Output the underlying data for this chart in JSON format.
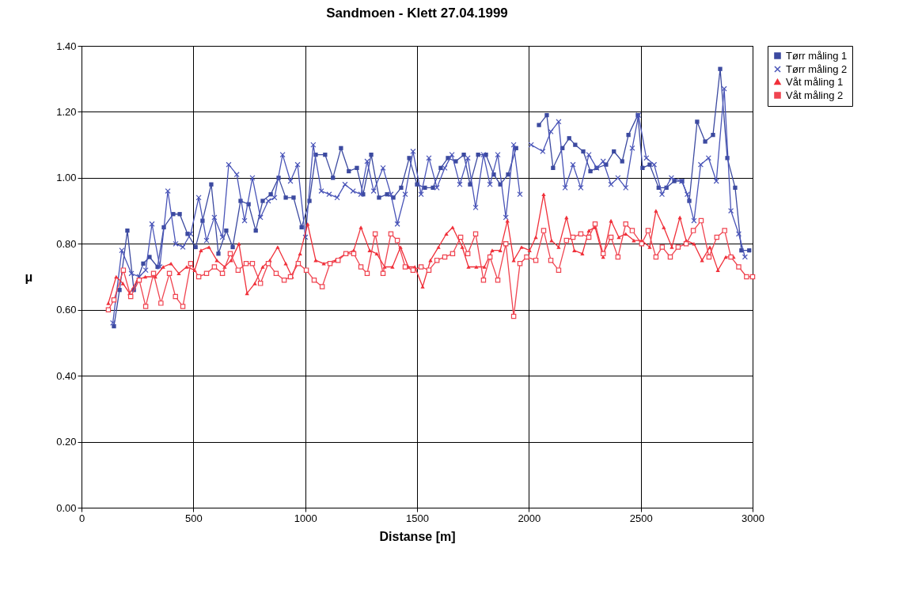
{
  "chart_data": {
    "type": "line",
    "title": "Sandmoen - Klett 27.04.1999",
    "xlabel": "Distanse [m]",
    "ylabel": "μ",
    "xlim": [
      0,
      3000
    ],
    "xticks": [
      0,
      500,
      1000,
      1500,
      2000,
      2500,
      3000
    ],
    "ylim": [
      0,
      1.4
    ],
    "yticks": [
      {
        "value": 0,
        "label": "0.00"
      },
      {
        "value": 0.2,
        "label": "0.20"
      },
      {
        "value": 0.4,
        "label": "0.40"
      },
      {
        "value": 0.6,
        "label": "0.60"
      },
      {
        "value": 0.8,
        "label": "0.80"
      },
      {
        "value": 1,
        "label": "1.00"
      },
      {
        "value": 1.2,
        "label": "1.20"
      },
      {
        "value": 1.4,
        "label": "1.40"
      }
    ],
    "grid": true,
    "legend": "right",
    "line_style": "solid",
    "series": [
      {
        "name": "Tørr måling 1",
        "color": "#3c4aa0",
        "marker": "square",
        "x": [
          145,
          170,
          205,
          234,
          276,
          304,
          340,
          368,
          410,
          439,
          474,
          510,
          541,
          580,
          612,
          647,
          676,
          711,
          747,
          779,
          810,
          846,
          881,
          913,
          948,
          984,
          1019,
          1047,
          1089,
          1124,
          1160,
          1195,
          1231,
          1259,
          1295,
          1330,
          1366,
          1394,
          1429,
          1465,
          1500,
          1535,
          1571,
          1606,
          1638,
          1673,
          1709,
          1737,
          1773,
          1808,
          1843,
          1872,
          1907,
          1943,
          1995,
          2045,
          2080,
          2108,
          2150,
          2180,
          2207,
          2243,
          2275,
          2303,
          2345,
          2380,
          2417,
          2445,
          2487,
          2508,
          2540,
          2580,
          2615,
          2650,
          2685,
          2717,
          2752,
          2788,
          2823,
          2855,
          2887,
          2922,
          2950,
          2985
        ],
        "values": [
          0.55,
          0.66,
          0.84,
          0.66,
          0.74,
          0.76,
          0.73,
          0.85,
          0.89,
          0.89,
          0.83,
          0.79,
          0.87,
          0.98,
          0.77,
          0.84,
          0.79,
          0.93,
          0.92,
          0.84,
          0.93,
          0.95,
          1.0,
          0.94,
          0.94,
          0.85,
          0.93,
          1.07,
          1.07,
          1.0,
          1.09,
          1.02,
          1.03,
          0.95,
          1.07,
          0.94,
          0.95,
          0.94,
          0.97,
          1.06,
          0.98,
          0.97,
          0.97,
          1.03,
          1.06,
          1.05,
          1.07,
          0.98,
          1.07,
          1.07,
          1.01,
          0.98,
          1.01,
          1.09,
          null,
          1.16,
          1.19,
          1.03,
          1.09,
          1.12,
          1.1,
          1.08,
          1.02,
          1.03,
          1.04,
          1.08,
          1.05,
          1.13,
          1.19,
          1.03,
          1.04,
          0.97,
          0.97,
          0.99,
          0.99,
          0.93,
          1.17,
          1.11,
          1.13,
          1.33,
          1.06,
          0.97,
          0.78,
          0.78
        ]
      },
      {
        "name": "Tørr måling 2",
        "color": "#4a55b8",
        "marker": "cross",
        "x": [
          140,
          180,
          223,
          258,
          287,
          315,
          350,
          386,
          421,
          453,
          488,
          524,
          559,
          594,
          630,
          658,
          694,
          729,
          764,
          800,
          835,
          863,
          899,
          934,
          966,
          1001,
          1036,
          1072,
          1107,
          1143,
          1178,
          1214,
          1249,
          1277,
          1306,
          1348,
          1383,
          1412,
          1447,
          1482,
          1518,
          1553,
          1589,
          1624,
          1656,
          1691,
          1727,
          1762,
          1797,
          1826,
          1861,
          1897,
          1932,
          1960,
          1985,
          2010,
          2062,
          2098,
          2133,
          2162,
          2197,
          2232,
          2268,
          2303,
          2332,
          2367,
          2398,
          2433,
          2462,
          2490,
          2525,
          2560,
          2595,
          2637,
          2683,
          2708,
          2738,
          2768,
          2803,
          2838,
          2873,
          2903,
          2938,
          2966
        ],
        "values": [
          0.56,
          0.78,
          0.71,
          0.7,
          0.72,
          0.86,
          0.73,
          0.96,
          0.8,
          0.79,
          0.83,
          0.94,
          0.81,
          0.88,
          0.82,
          1.04,
          1.01,
          0.87,
          1.0,
          0.88,
          0.93,
          0.94,
          1.07,
          0.99,
          1.04,
          0.82,
          1.1,
          0.96,
          0.95,
          0.94,
          0.98,
          0.96,
          0.95,
          1.05,
          0.96,
          1.03,
          0.95,
          0.86,
          0.95,
          1.08,
          0.95,
          1.06,
          0.97,
          1.03,
          1.07,
          0.98,
          1.06,
          0.91,
          1.07,
          0.98,
          1.07,
          0.88,
          1.1,
          0.95,
          null,
          1.1,
          1.08,
          1.14,
          1.17,
          0.97,
          1.04,
          0.97,
          1.07,
          1.03,
          1.05,
          0.98,
          1.0,
          0.97,
          1.09,
          1.19,
          1.06,
          1.04,
          0.95,
          1.0,
          0.99,
          0.95,
          0.87,
          1.04,
          1.06,
          0.99,
          1.27,
          0.9,
          0.83,
          0.76
        ]
      },
      {
        "name": "Våt måling 1",
        "color": "#f0303a",
        "marker": "triangle",
        "x": [
          120,
          155,
          185,
          215,
          250,
          285,
          330,
          365,
          400,
          435,
          470,
          506,
          534,
          570,
          605,
          640,
          669,
          704,
          740,
          775,
          810,
          842,
          877,
          913,
          941,
          977,
          1011,
          1047,
          1083,
          1136,
          1182,
          1217,
          1249,
          1288,
          1320,
          1355,
          1390,
          1426,
          1461,
          1490,
          1525,
          1560,
          1596,
          1631,
          1659,
          1702,
          1730,
          1765,
          1801,
          1836,
          1872,
          1904,
          1932,
          1967,
          2003,
          2031,
          2066,
          2101,
          2133,
          2168,
          2203,
          2239,
          2268,
          2296,
          2332,
          2367,
          2402,
          2433,
          2469,
          2504,
          2540,
          2568,
          2603,
          2639,
          2675,
          2703,
          2738,
          2774,
          2809,
          2845,
          2880,
          2915
        ],
        "values": [
          0.62,
          0.7,
          0.68,
          0.65,
          0.69,
          0.7,
          0.7,
          0.73,
          0.74,
          0.71,
          0.73,
          0.72,
          0.78,
          0.79,
          0.75,
          0.73,
          0.75,
          0.8,
          0.65,
          0.68,
          0.73,
          0.75,
          0.79,
          0.74,
          0.7,
          0.77,
          0.86,
          0.75,
          0.74,
          0.75,
          0.77,
          0.78,
          0.85,
          0.78,
          0.77,
          0.73,
          0.73,
          0.79,
          0.73,
          0.73,
          0.67,
          0.75,
          0.79,
          0.83,
          0.85,
          0.79,
          0.73,
          0.73,
          0.73,
          0.78,
          0.78,
          0.87,
          0.75,
          0.79,
          0.78,
          0.82,
          0.95,
          0.81,
          0.79,
          0.88,
          0.78,
          0.77,
          0.84,
          0.85,
          0.76,
          0.87,
          0.82,
          0.83,
          0.81,
          0.81,
          0.79,
          0.9,
          0.85,
          0.79,
          0.88,
          0.81,
          0.8,
          0.75,
          0.79,
          0.72,
          0.76,
          0.76
        ]
      },
      {
        "name": "Våt måling 2",
        "color": "#f04450",
        "marker": "square",
        "x": [
          120,
          145,
          187,
          220,
          258,
          287,
          322,
          355,
          393,
          420,
          453,
          488,
          524,
          559,
          594,
          630,
          665,
          700,
          736,
          764,
          800,
          835,
          870,
          906,
          934,
          969,
          1005,
          1040,
          1076,
          1111,
          1147,
          1182,
          1217,
          1249,
          1277,
          1313,
          1348,
          1383,
          1412,
          1447,
          1482,
          1518,
          1553,
          1589,
          1624,
          1659,
          1695,
          1727,
          1762,
          1797,
          1826,
          1861,
          1897,
          1932,
          1960,
          1990,
          2031,
          2066,
          2098,
          2133,
          2168,
          2197,
          2232,
          2268,
          2296,
          2332,
          2367,
          2398,
          2433,
          2462,
          2504,
          2533,
          2568,
          2596,
          2632,
          2667,
          2703,
          2735,
          2770,
          2805,
          2840,
          2875,
          2903,
          2938,
          2973,
          3000
        ],
        "values": [
          0.6,
          0.63,
          0.72,
          0.64,
          0.69,
          0.61,
          0.71,
          0.62,
          0.71,
          0.64,
          0.61,
          0.74,
          0.7,
          0.71,
          0.73,
          0.71,
          0.77,
          0.72,
          0.74,
          0.74,
          0.68,
          0.74,
          0.71,
          0.69,
          0.7,
          0.74,
          0.72,
          0.69,
          0.67,
          0.74,
          0.75,
          0.77,
          0.77,
          0.73,
          0.71,
          0.83,
          0.71,
          0.83,
          0.81,
          0.73,
          0.72,
          0.73,
          0.72,
          0.75,
          0.76,
          0.77,
          0.82,
          0.77,
          0.83,
          0.69,
          0.76,
          0.69,
          0.8,
          0.58,
          0.74,
          0.76,
          0.75,
          0.84,
          0.75,
          0.72,
          0.81,
          0.82,
          0.83,
          0.82,
          0.86,
          0.77,
          0.82,
          0.76,
          0.86,
          0.84,
          0.8,
          0.84,
          0.76,
          0.79,
          0.76,
          0.79,
          0.8,
          0.84,
          0.87,
          0.76,
          0.82,
          0.84,
          0.76,
          0.73,
          0.7,
          0.7
        ]
      }
    ]
  }
}
